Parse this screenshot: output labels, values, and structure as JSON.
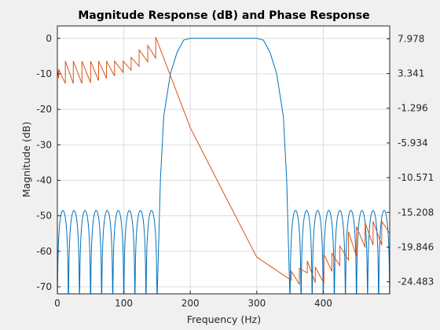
{
  "chart_data": {
    "type": "line",
    "title": "Magnitude Response (dB) and Phase Response",
    "xlabel": "Frequency (Hz)",
    "ylabel": "Magnitude (dB)",
    "ylabel_right": "",
    "xlim": [
      0,
      500
    ],
    "ylim": [
      -72,
      3.5
    ],
    "ylim_right": [
      -26.1,
      9.7
    ],
    "x_ticks": [
      0,
      100,
      200,
      300,
      400
    ],
    "y_ticks": [
      0,
      -10,
      -20,
      -30,
      -40,
      -50,
      -60,
      -70
    ],
    "y_ticks_right": [
      "7.978",
      "3.341",
      "-1.296",
      "-5.934",
      "-10.571",
      "-15.208",
      "-19.846",
      "-24.483"
    ],
    "grid": true,
    "colors": {
      "magnitude": "#0072bd",
      "phase": "#d95319",
      "axes_bg": "#ffffff",
      "figure_bg": "#f0f0f0",
      "grid": "#dcdcdc"
    },
    "series": [
      {
        "role": "magnitude",
        "axis": "left",
        "passband": [
          200,
          300
        ],
        "transition_band": [
          [
            150,
            200
          ],
          [
            300,
            350
          ]
        ],
        "stopband_ripple_peak_db": -48.5,
        "stopband_ripple_count_low": 9,
        "stopband_ripple_count_high": 9,
        "x": [
          0,
          150,
          155,
          160,
          170,
          180,
          190,
          200,
          300,
          310,
          320,
          330,
          340,
          345,
          350,
          500
        ],
        "y": [
          -48.5,
          -48.5,
          -40,
          -22,
          -10,
          -4,
          -0.5,
          0,
          0,
          -0.5,
          -4,
          -10,
          -22,
          -40,
          -48.5,
          -48.5
        ]
      },
      {
        "role": "phase",
        "axis": "right",
        "x": [
          0,
          2,
          2,
          12,
          12,
          24,
          24,
          37,
          37,
          50,
          50,
          62,
          62,
          74,
          74,
          86,
          86,
          99,
          99,
          111,
          111,
          123,
          123,
          136,
          136,
          148,
          148,
          200,
          250,
          300,
          352,
          352,
          364,
          364,
          376,
          376,
          388,
          388,
          401,
          401,
          413,
          413,
          425,
          425,
          438,
          438,
          450,
          450,
          463,
          463,
          475,
          475,
          488,
          488,
          500
        ],
        "y": [
          3.9,
          2.7,
          3.9,
          2.0,
          5.0,
          2.0,
          5.0,
          2.0,
          5.0,
          2.1,
          5.0,
          2.4,
          5.0,
          2.7,
          5.0,
          3.0,
          5.0,
          3.5,
          5.0,
          3.8,
          5.5,
          4.3,
          6.5,
          4.9,
          7.1,
          5.4,
          8.2,
          -3.9,
          -12.6,
          -21.2,
          -24.3,
          -23.1,
          -24.8,
          -22.7,
          -23.3,
          -21.7,
          -24.6,
          -22.5,
          -24.7,
          -20.8,
          -23.1,
          -20.7,
          -22.3,
          -19.7,
          -21.6,
          -17.8,
          -21.1,
          -17.1,
          -19.9,
          -16.6,
          -19.6,
          -16.4,
          -19.6,
          -16.4,
          -18.0
        ]
      }
    ]
  }
}
